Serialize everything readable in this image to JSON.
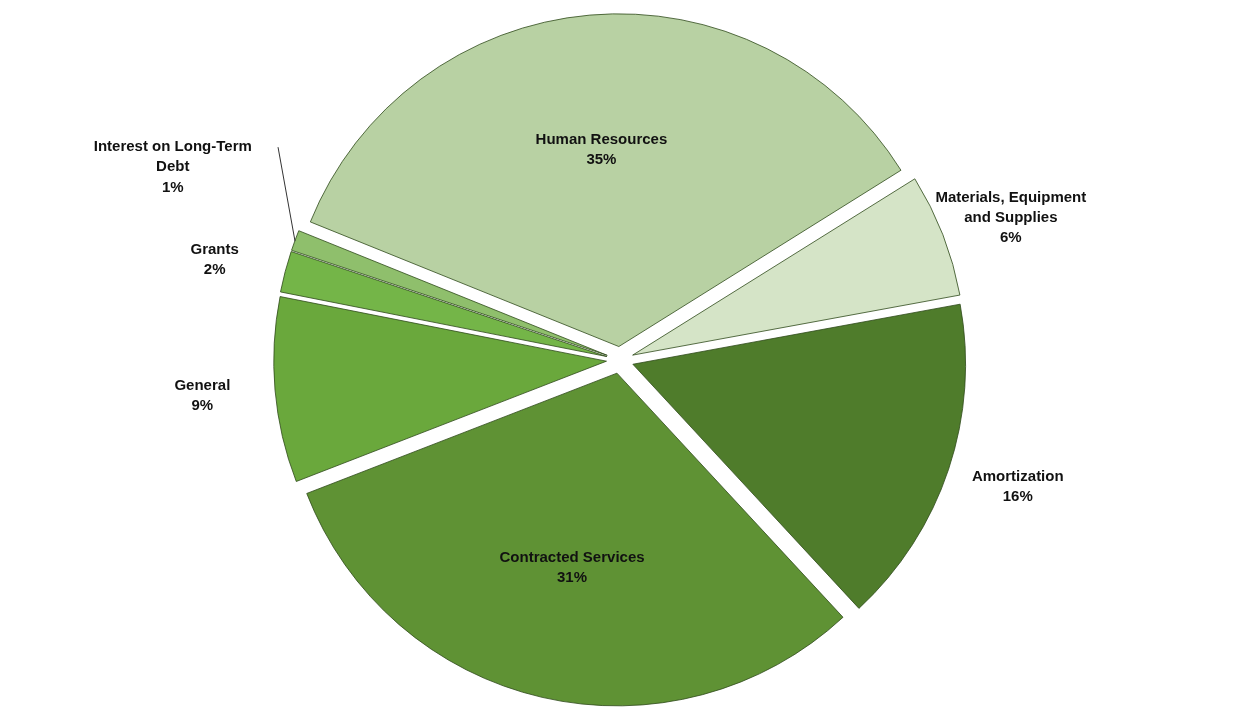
{
  "chart_data": {
    "type": "pie",
    "categories": [
      "Human Resources",
      "Materials, Equipment and Supplies",
      "Amortization",
      "Contracted Services",
      "General",
      "Grants",
      "Interest on Long-Term Debt"
    ],
    "values": [
      35,
      6,
      16,
      31,
      9,
      2,
      1
    ],
    "value_labels": [
      "35%",
      "6%",
      "16%",
      "31%",
      "9%",
      "2%",
      "1%"
    ],
    "colors": [
      "#b8d1a3",
      "#d5e4c7",
      "#4f7c2b",
      "#5f9234",
      "#6aa83c",
      "#74b548",
      "#8fbf6c"
    ]
  }
}
